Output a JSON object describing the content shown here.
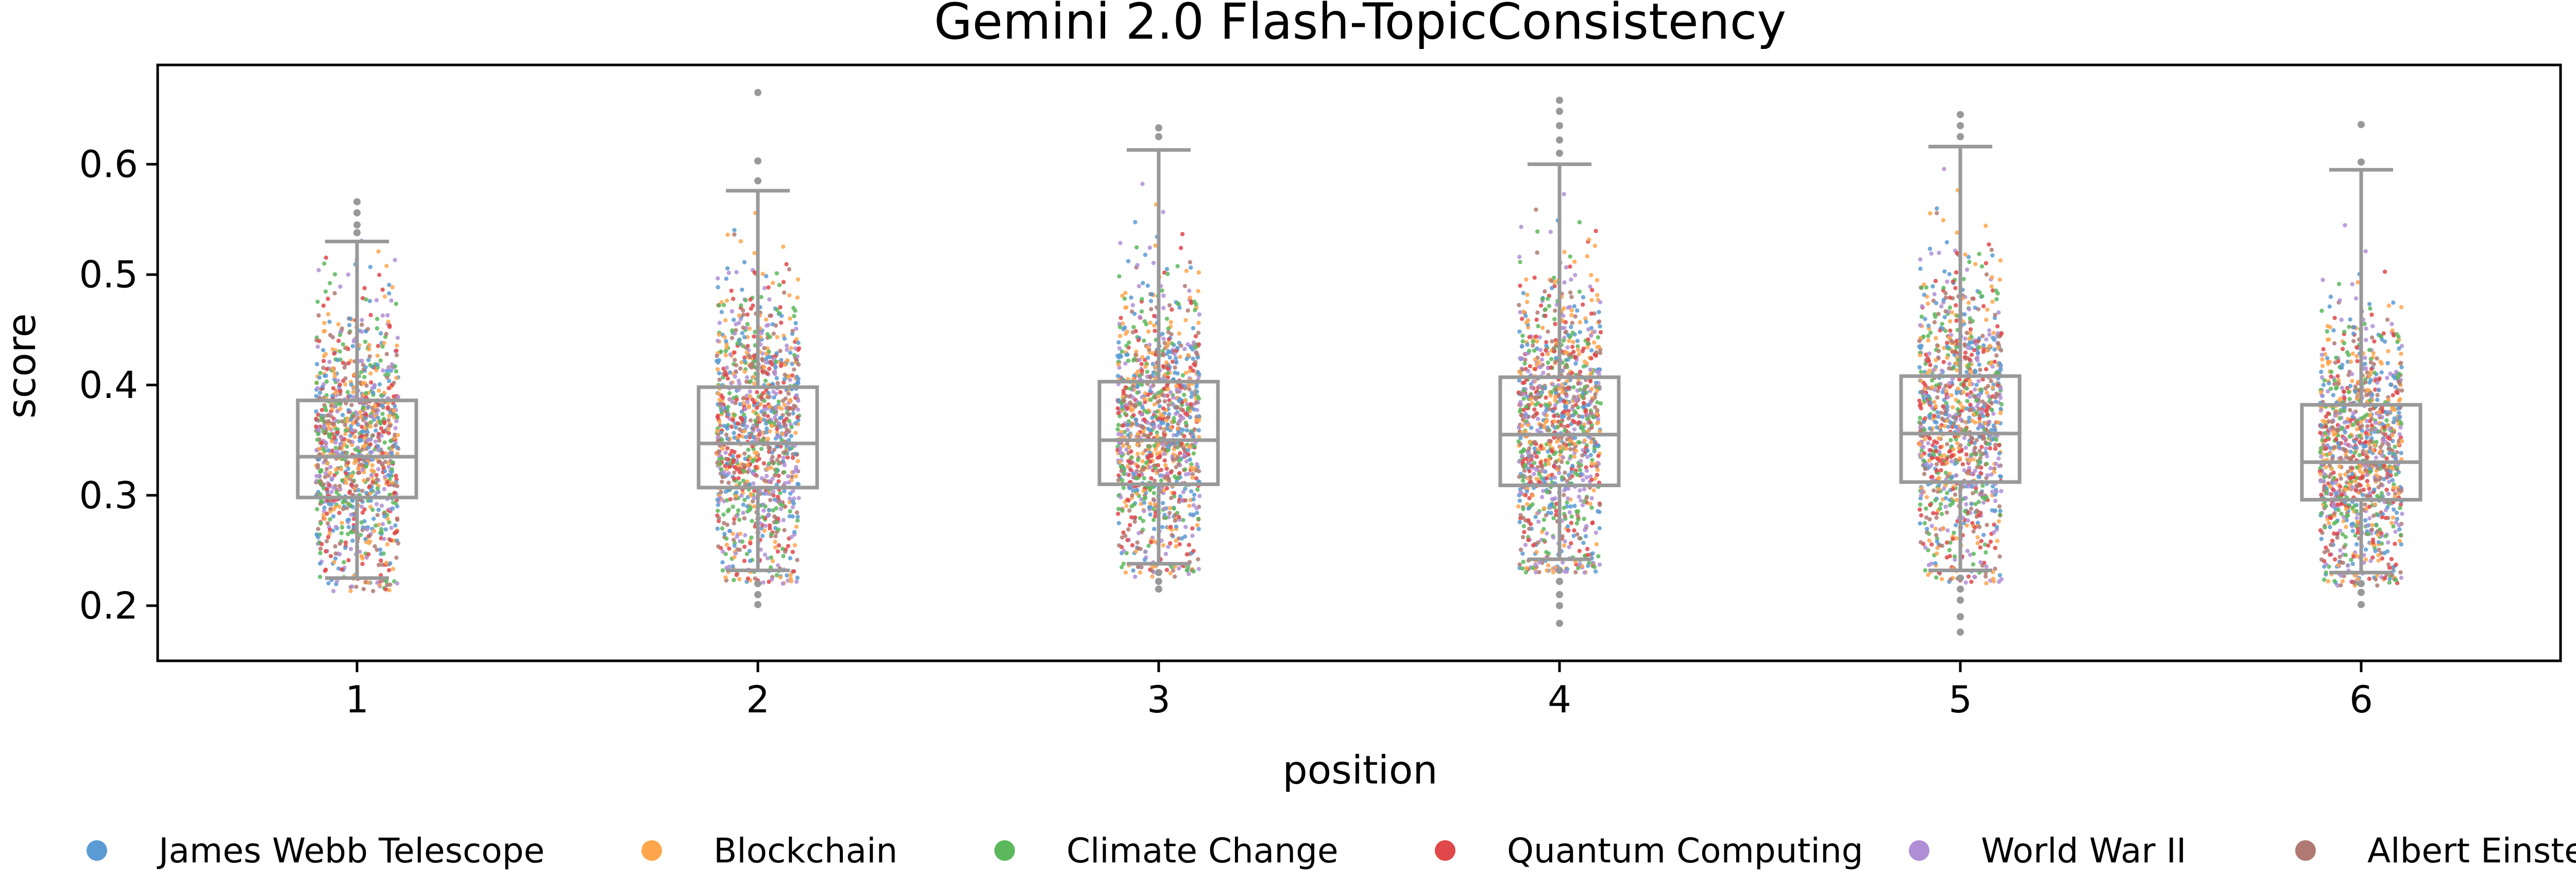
{
  "chart_data": {
    "type": "box",
    "title": "Gemini 2.0 Flash-TopicConsistency",
    "xlabel": "position",
    "ylabel": "score",
    "categories": [
      "1",
      "2",
      "3",
      "4",
      "5",
      "6"
    ],
    "ylim": [
      0.15,
      0.69
    ],
    "yticks": [
      0.2,
      0.3,
      0.4,
      0.5,
      0.6
    ],
    "ytick_labels": [
      "0.2",
      "0.3",
      "0.4",
      "0.5",
      "0.6"
    ],
    "grid": false,
    "legend_position": "bottom",
    "boxes": [
      {
        "position": "1",
        "whisker_low": 0.225,
        "q1": 0.298,
        "median": 0.335,
        "q3": 0.386,
        "whisker_high": 0.53,
        "outliers": [
          0.538,
          0.545,
          0.556,
          0.566
        ]
      },
      {
        "position": "2",
        "whisker_low": 0.232,
        "q1": 0.307,
        "median": 0.347,
        "q3": 0.398,
        "whisker_high": 0.576,
        "outliers": [
          0.201,
          0.21,
          0.22,
          0.585,
          0.603,
          0.665
        ]
      },
      {
        "position": "3",
        "whisker_low": 0.238,
        "q1": 0.31,
        "median": 0.35,
        "q3": 0.403,
        "whisker_high": 0.613,
        "outliers": [
          0.215,
          0.222,
          0.23,
          0.625,
          0.633
        ]
      },
      {
        "position": "4",
        "whisker_low": 0.242,
        "q1": 0.309,
        "median": 0.355,
        "q3": 0.407,
        "whisker_high": 0.6,
        "outliers": [
          0.184,
          0.2,
          0.21,
          0.222,
          0.232,
          0.61,
          0.622,
          0.635,
          0.648,
          0.658
        ]
      },
      {
        "position": "5",
        "whisker_low": 0.232,
        "q1": 0.312,
        "median": 0.356,
        "q3": 0.408,
        "whisker_high": 0.616,
        "outliers": [
          0.176,
          0.19,
          0.205,
          0.215,
          0.225,
          0.625,
          0.635,
          0.645
        ]
      },
      {
        "position": "6",
        "whisker_low": 0.23,
        "q1": 0.296,
        "median": 0.33,
        "q3": 0.382,
        "whisker_high": 0.595,
        "outliers": [
          0.201,
          0.212,
          0.22,
          0.602,
          0.636
        ]
      }
    ],
    "series": [
      {
        "name": "James Webb Telescope",
        "color": "#5a9bd4"
      },
      {
        "name": "Blockchain",
        "color": "#ffa64d"
      },
      {
        "name": "Climate Change",
        "color": "#5cb85c"
      },
      {
        "name": "Quantum Computing",
        "color": "#e0484a"
      },
      {
        "name": "World War II",
        "color": "#b08fd6"
      },
      {
        "name": "Albert Einstein",
        "color": "#b07a72"
      }
    ],
    "box_color": "#999999"
  }
}
